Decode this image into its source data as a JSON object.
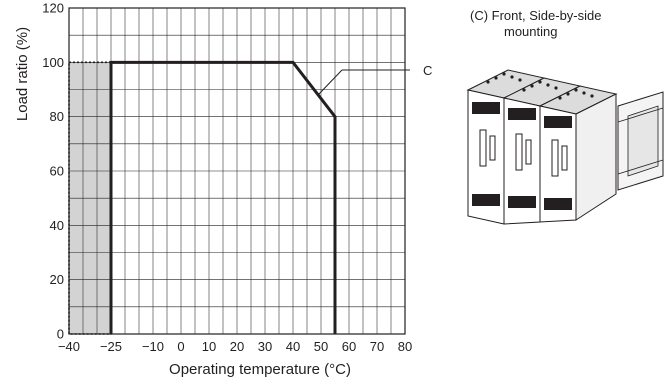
{
  "chart_data": {
    "type": "line",
    "xlabel": "Operating temperature (°C)",
    "ylabel": "Load ratio (%)",
    "xlim": [
      -40,
      80
    ],
    "ylim": [
      0,
      120
    ],
    "x_grid_step": 5,
    "y_grid_step": 10,
    "x_ticks": [
      {
        "value": -40,
        "label": "−40"
      },
      {
        "value": -25,
        "label": "−25"
      },
      {
        "value": -10,
        "label": "−10"
      },
      {
        "value": 0,
        "label": "0"
      },
      {
        "value": 10,
        "label": "10"
      },
      {
        "value": 20,
        "label": "20"
      },
      {
        "value": 30,
        "label": "30"
      },
      {
        "value": 40,
        "label": "40"
      },
      {
        "value": 50,
        "label": "50"
      },
      {
        "value": 60,
        "label": "60"
      },
      {
        "value": 70,
        "label": "70"
      },
      {
        "value": 80,
        "label": "80"
      }
    ],
    "y_ticks": [
      {
        "value": 0,
        "label": "0"
      },
      {
        "value": 20,
        "label": "20"
      },
      {
        "value": 40,
        "label": "40"
      },
      {
        "value": 60,
        "label": "60"
      },
      {
        "value": 80,
        "label": "80"
      },
      {
        "value": 100,
        "label": "100"
      },
      {
        "value": 120,
        "label": "120"
      }
    ],
    "grid": true,
    "series": [
      {
        "name": "C",
        "x": [
          -25,
          -25,
          40,
          55,
          55
        ],
        "y": [
          0,
          100,
          100,
          80,
          0
        ]
      }
    ],
    "shaded_region": {
      "x": [
        -40,
        -25
      ],
      "y": [
        0,
        100
      ],
      "fill": "#d3d3d3"
    },
    "colors": {
      "line": "#231f20",
      "grid": "#231f20",
      "shade": "#d3d3d3"
    }
  },
  "annotation": {
    "series_label": "C",
    "caption_line1": "(C) Front, Side-by-side",
    "caption_line2": "mounting"
  }
}
